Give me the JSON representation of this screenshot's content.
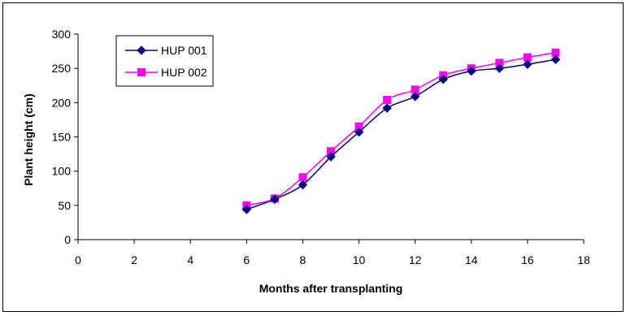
{
  "chart_data": {
    "type": "line",
    "xlabel": "Months after transplanting",
    "ylabel": "Plant height (cm)",
    "xlim": [
      0,
      18
    ],
    "ylim": [
      0,
      300
    ],
    "x_ticks": [
      0,
      2,
      4,
      6,
      8,
      10,
      12,
      14,
      16,
      18
    ],
    "y_ticks": [
      0,
      50,
      100,
      150,
      200,
      250,
      300
    ],
    "grid": false,
    "legend_position": "top-left",
    "x": [
      6,
      7,
      8,
      9,
      10,
      11,
      12,
      13,
      14,
      15,
      16,
      17
    ],
    "series": [
      {
        "name": "HUP 001",
        "color": "#000080",
        "marker": "diamond",
        "values": [
          44,
          59,
          80,
          121,
          157,
          192,
          209,
          234,
          246,
          250,
          256,
          263
        ]
      },
      {
        "name": "HUP 002",
        "color": "#FF00FF",
        "marker": "square",
        "values": [
          50,
          60,
          91,
          129,
          165,
          204,
          219,
          240,
          250,
          258,
          266,
          273
        ]
      }
    ]
  }
}
